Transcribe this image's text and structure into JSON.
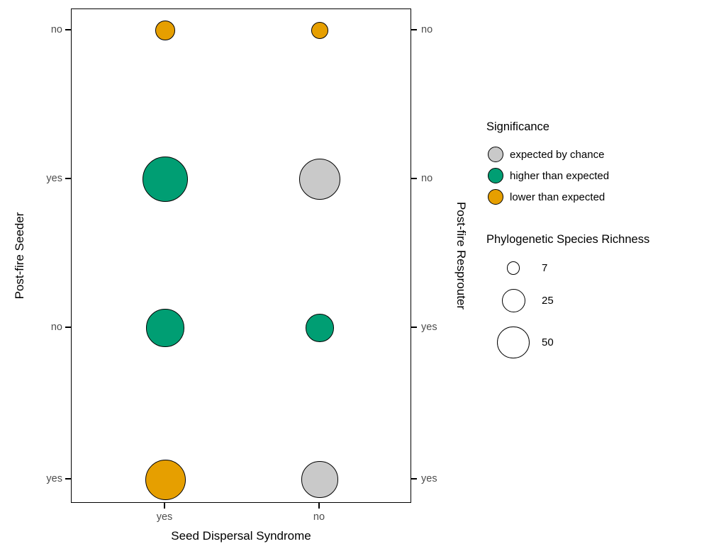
{
  "chart_data": {
    "type": "scatter",
    "subtype": "bubble",
    "title": "",
    "xlabel": "Seed Dispersal Syndrome",
    "ylabel_left": "Post-fire Seeder",
    "ylabel_right": "Post-fire Resprouter",
    "x_categories": [
      "yes",
      "no"
    ],
    "rows": [
      {
        "seeder": "no",
        "resprouter": "no"
      },
      {
        "seeder": "yes",
        "resprouter": "no"
      },
      {
        "seeder": "no",
        "resprouter": "yes"
      },
      {
        "seeder": "yes",
        "resprouter": "yes"
      }
    ],
    "points": [
      {
        "row": 0,
        "x": "yes",
        "significance": "lower than expected",
        "psr": 17
      },
      {
        "row": 0,
        "x": "no",
        "significance": "lower than expected",
        "psr": 12
      },
      {
        "row": 1,
        "x": "yes",
        "significance": "higher than expected",
        "psr": 105
      },
      {
        "row": 1,
        "x": "no",
        "significance": "expected by chance",
        "psr": 87
      },
      {
        "row": 2,
        "x": "yes",
        "significance": "higher than expected",
        "psr": 70
      },
      {
        "row": 2,
        "x": "no",
        "significance": "higher than expected",
        "psr": 37
      },
      {
        "row": 3,
        "x": "yes",
        "significance": "lower than expected",
        "psr": 81
      },
      {
        "row": 3,
        "x": "no",
        "significance": "expected by chance",
        "psr": 65
      }
    ],
    "size_scale_note": "circle area proportional to Phylogenetic Species Richness",
    "size_legend_breaks": [
      7,
      25,
      50
    ],
    "legend_position": "right",
    "grid": false
  },
  "legend": {
    "significance": {
      "title": "Significance",
      "items": [
        {
          "label": "expected by chance",
          "color": "#c9c9c9"
        },
        {
          "label": "higher than expected",
          "color": "#009e73"
        },
        {
          "label": "lower than expected",
          "color": "#e69f00"
        }
      ]
    },
    "size": {
      "title": "Phylogenetic Species Richness",
      "items": [
        7,
        25,
        50
      ]
    }
  },
  "colors": {
    "expected by chance": "#c9c9c9",
    "higher than expected": "#009e73",
    "lower than expected": "#e69f00",
    "stroke": "#000000",
    "tick_label": "#4d4d4d"
  }
}
